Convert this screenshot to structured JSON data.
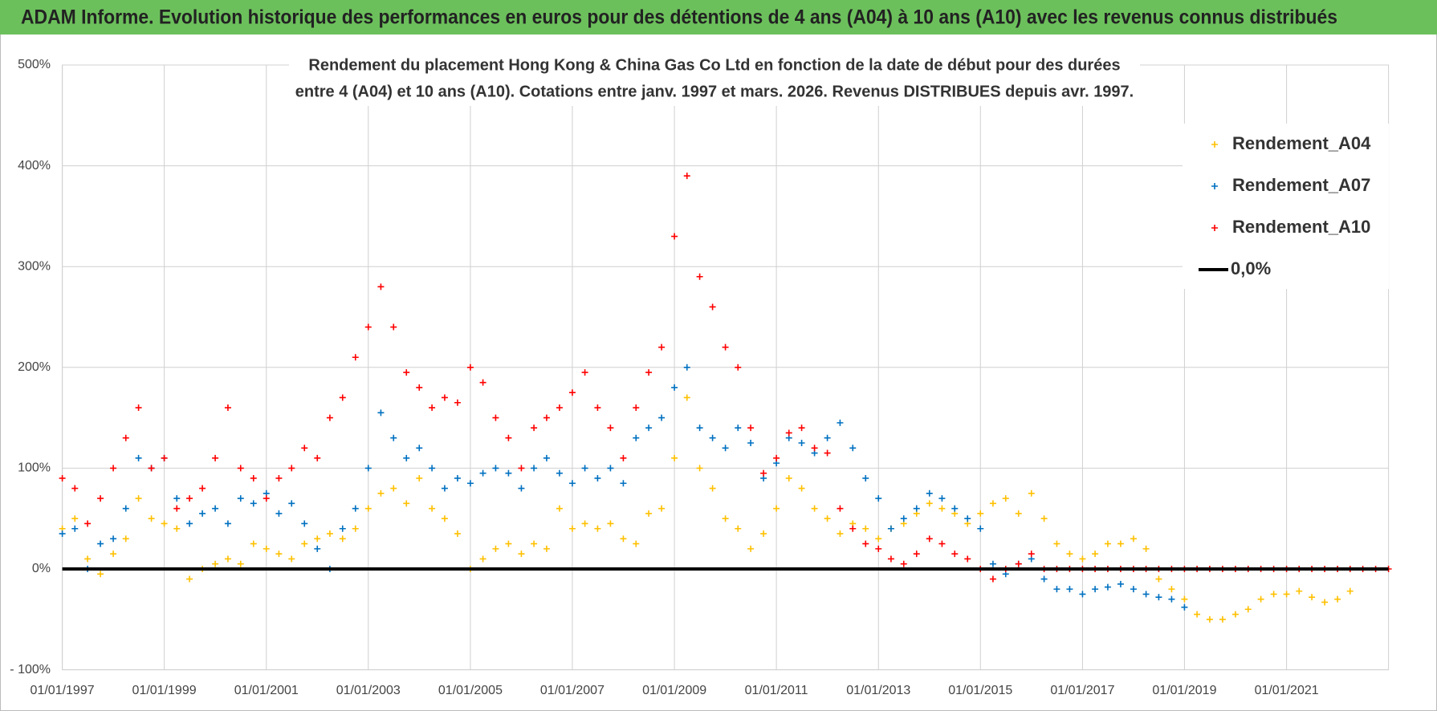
{
  "header": {
    "title": "ADAM Informe. Evolution historique des performances en euros pour des détentions de 4 ans (A04) à 10 ans (A10) avec les revenus connus distribués"
  },
  "chart_data": {
    "type": "scatter",
    "title": "Rendement du placement Hong Kong & China Gas Co Ltd en fonction de la date de début pour des durées",
    "subtitle": "entre 4 (A04) et 10 ans (A10). Cotations entre janv. 1997 et mars. 2026. Revenus DISTRIBUES depuis avr. 1997.",
    "x": [
      "1997-01-01",
      "1997-04-01",
      "1997-07-01",
      "1997-10-01",
      "1998-01-01",
      "1998-04-01",
      "1998-07-01",
      "1998-10-01",
      "1999-01-01",
      "1999-04-01",
      "1999-07-01",
      "1999-10-01",
      "2000-01-01",
      "2000-04-01",
      "2000-07-01",
      "2000-10-01",
      "2001-01-01",
      "2001-04-01",
      "2001-07-01",
      "2001-10-01",
      "2002-01-01",
      "2002-04-01",
      "2002-07-01",
      "2002-10-01",
      "2003-01-01",
      "2003-04-01",
      "2003-07-01",
      "2003-10-01",
      "2004-01-01",
      "2004-04-01",
      "2004-07-01",
      "2004-10-01",
      "2005-01-01",
      "2005-04-01",
      "2005-07-01",
      "2005-10-01",
      "2006-01-01",
      "2006-04-01",
      "2006-07-01",
      "2006-10-01",
      "2007-01-01",
      "2007-04-01",
      "2007-07-01",
      "2007-10-01",
      "2008-01-01",
      "2008-04-01",
      "2008-07-01",
      "2008-10-01",
      "2009-01-01",
      "2009-04-01",
      "2009-07-01",
      "2009-10-01",
      "2010-01-01",
      "2010-04-01",
      "2010-07-01",
      "2010-10-01",
      "2011-01-01",
      "2011-04-01",
      "2011-07-01",
      "2011-10-01",
      "2012-01-01",
      "2012-04-01",
      "2012-07-01",
      "2012-10-01",
      "2013-01-01",
      "2013-04-01",
      "2013-07-01",
      "2013-10-01",
      "2014-01-01",
      "2014-04-01",
      "2014-07-01",
      "2014-10-01",
      "2015-01-01",
      "2015-04-01",
      "2015-07-01",
      "2015-10-01",
      "2016-01-01",
      "2016-04-01",
      "2016-07-01",
      "2016-10-01",
      "2017-01-01",
      "2017-04-01",
      "2017-07-01",
      "2017-10-01",
      "2018-01-01",
      "2018-04-01",
      "2018-07-01",
      "2018-10-01",
      "2019-01-01",
      "2019-04-01",
      "2019-07-01",
      "2019-10-01",
      "2020-01-01",
      "2020-04-01",
      "2020-07-01",
      "2020-10-01",
      "2021-01-01",
      "2021-04-01",
      "2021-07-01",
      "2021-10-01",
      "2022-01-01",
      "2022-04-01",
      "2022-07-01",
      "2022-10-01",
      "2023-01-01"
    ],
    "series": [
      {
        "name": "Rendement_A04",
        "color": "#ffc000",
        "values": [
          40,
          50,
          10,
          -5,
          15,
          30,
          70,
          50,
          45,
          40,
          -10,
          0,
          5,
          10,
          5,
          25,
          20,
          15,
          10,
          25,
          30,
          35,
          30,
          40,
          60,
          75,
          80,
          65,
          90,
          60,
          50,
          35,
          0,
          10,
          20,
          25,
          15,
          25,
          20,
          60,
          40,
          45,
          40,
          45,
          30,
          25,
          55,
          60,
          110,
          170,
          100,
          80,
          50,
          40,
          20,
          35,
          60,
          90,
          80,
          60,
          50,
          35,
          45,
          40,
          30,
          40,
          45,
          55,
          65,
          60,
          55,
          45,
          55,
          65,
          70,
          55,
          75,
          50,
          25,
          15,
          10,
          15,
          25,
          25,
          30,
          20,
          -10,
          -20,
          -30,
          -45,
          -50,
          -50,
          -45,
          -40,
          -30,
          -25,
          -25,
          -22,
          -28,
          -33,
          -30,
          -22,
          null,
          null,
          null
        ]
      },
      {
        "name": "Rendement_A07",
        "color": "#0070c0",
        "values": [
          35,
          40,
          0,
          25,
          30,
          60,
          110,
          100,
          110,
          70,
          45,
          55,
          60,
          45,
          70,
          65,
          75,
          55,
          65,
          45,
          20,
          0,
          40,
          60,
          100,
          155,
          130,
          110,
          120,
          100,
          80,
          90,
          85,
          95,
          100,
          95,
          80,
          100,
          110,
          95,
          85,
          100,
          90,
          100,
          85,
          130,
          140,
          150,
          180,
          200,
          140,
          130,
          120,
          140,
          125,
          90,
          105,
          130,
          125,
          115,
          130,
          145,
          120,
          90,
          70,
          40,
          50,
          60,
          75,
          70,
          60,
          50,
          40,
          5,
          -5,
          5,
          10,
          -10,
          -20,
          -20,
          -25,
          -20,
          -18,
          -15,
          -20,
          -25,
          -28,
          -30,
          -38,
          null,
          null,
          null,
          null,
          null,
          null,
          null,
          null,
          null,
          null,
          null,
          null,
          null,
          null,
          null,
          null
        ]
      },
      {
        "name": "Rendement_A10",
        "color": "#ff0000",
        "values": [
          90,
          80,
          45,
          70,
          100,
          130,
          160,
          100,
          110,
          60,
          70,
          80,
          110,
          160,
          100,
          90,
          70,
          90,
          100,
          120,
          110,
          150,
          170,
          210,
          240,
          280,
          240,
          195,
          180,
          160,
          170,
          165,
          200,
          185,
          150,
          130,
          100,
          140,
          150,
          160,
          175,
          195,
          160,
          140,
          110,
          160,
          195,
          220,
          330,
          390,
          290,
          260,
          220,
          200,
          140,
          95,
          110,
          135,
          140,
          120,
          115,
          60,
          40,
          25,
          20,
          10,
          5,
          15,
          30,
          25,
          15,
          10,
          0,
          -10,
          0,
          5,
          15,
          0,
          0,
          0,
          0,
          0,
          0,
          0,
          0,
          0,
          0,
          0,
          0,
          0,
          0,
          0,
          0,
          0,
          0,
          0,
          0,
          0,
          0,
          0,
          0,
          0,
          0,
          0,
          0
        ]
      }
    ],
    "zero_line": {
      "name": "0,0%",
      "value": 0,
      "color": "#000000"
    },
    "xlim": [
      "1997-01-01",
      "2023-01-01"
    ],
    "xticks": [
      {
        "value": "1997-01-01",
        "label": "01/01/1997"
      },
      {
        "value": "1999-01-01",
        "label": "01/01/1999"
      },
      {
        "value": "2001-01-01",
        "label": "01/01/2001"
      },
      {
        "value": "2003-01-01",
        "label": "01/01/2003"
      },
      {
        "value": "2005-01-01",
        "label": "01/01/2005"
      },
      {
        "value": "2007-01-01",
        "label": "01/01/2007"
      },
      {
        "value": "2009-01-01",
        "label": "01/01/2009"
      },
      {
        "value": "2011-01-01",
        "label": "01/01/2011"
      },
      {
        "value": "2013-01-01",
        "label": "01/01/2013"
      },
      {
        "value": "2015-01-01",
        "label": "01/01/2015"
      },
      {
        "value": "2017-01-01",
        "label": "01/01/2017"
      },
      {
        "value": "2019-01-01",
        "label": "01/01/2019"
      },
      {
        "value": "2021-01-01",
        "label": "01/01/2021"
      }
    ],
    "ylim": [
      -100,
      500
    ],
    "yticks": [
      {
        "value": -100,
        "label": "- 100%"
      },
      {
        "value": 0,
        "label": "0%"
      },
      {
        "value": 100,
        "label": "100%"
      },
      {
        "value": 200,
        "label": "200%"
      },
      {
        "value": 300,
        "label": "300%"
      },
      {
        "value": 400,
        "label": "400%"
      },
      {
        "value": 500,
        "label": "500%"
      }
    ],
    "grid": true,
    "legend": "upper right"
  }
}
